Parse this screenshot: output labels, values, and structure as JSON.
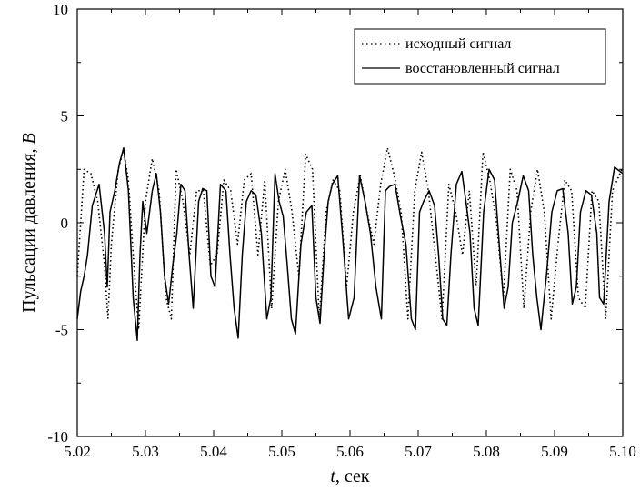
{
  "chart_data": {
    "type": "line",
    "xlabel": "t, сек",
    "xlabel_italic_part": "t",
    "xlabel_rest": ", сек",
    "ylabel": "Пульсации давления, В",
    "ylabel_main": "Пульсации давления, ",
    "ylabel_italic_part": "В",
    "xlim": [
      5.02,
      5.1
    ],
    "ylim": [
      -10,
      10
    ],
    "x_ticks": [
      "5.02",
      "5.03",
      "5.04",
      "5.05",
      "5.06",
      "5.07",
      "5.08",
      "5.09",
      "5.10"
    ],
    "y_ticks": [
      "-10",
      "-5",
      "0",
      "5",
      "10"
    ],
    "legend_position": "top-right",
    "series": [
      {
        "name": "исходный сигнал",
        "style": "dotted",
        "x": [
          5.02,
          5.021,
          5.022,
          5.023,
          5.024,
          5.0245,
          5.025,
          5.026,
          5.0268,
          5.0275,
          5.0282,
          5.029,
          5.03,
          5.031,
          5.032,
          5.033,
          5.0338,
          5.0345,
          5.0355,
          5.0365,
          5.0375,
          5.0385,
          5.0395,
          5.0405,
          5.0415,
          5.0425,
          5.0435,
          5.0445,
          5.0455,
          5.0465,
          5.0475,
          5.0485,
          5.0495,
          5.0505,
          5.0515,
          5.0525,
          5.0535,
          5.0545,
          5.0555,
          5.0565,
          5.0575,
          5.0585,
          5.0595,
          5.0605,
          5.0615,
          5.0625,
          5.0635,
          5.0645,
          5.0655,
          5.0665,
          5.0675,
          5.0685,
          5.0695,
          5.0705,
          5.0715,
          5.0725,
          5.0735,
          5.0745,
          5.0755,
          5.0765,
          5.0775,
          5.0785,
          5.0795,
          5.0805,
          5.0815,
          5.0825,
          5.0835,
          5.0845,
          5.0855,
          5.0865,
          5.0875,
          5.0885,
          5.0895,
          5.0905,
          5.0915,
          5.0925,
          5.0935,
          5.0945,
          5.0955,
          5.0965,
          5.0975,
          5.0985,
          5.1
        ],
        "y": [
          -2.5,
          2.5,
          2.3,
          1.0,
          -2.0,
          -4.5,
          -1.0,
          2.5,
          3.4,
          2.0,
          -1.5,
          -5.0,
          1.0,
          3.0,
          1.5,
          -3.5,
          -4.5,
          2.5,
          1.0,
          -1.5,
          1.5,
          1.5,
          -2.0,
          -1.5,
          2.0,
          1.5,
          -1.0,
          2.0,
          2.3,
          -1.5,
          2.0,
          -4.0,
          1.0,
          2.5,
          0.5,
          -2.5,
          3.2,
          2.5,
          -4.5,
          0.5,
          2.0,
          1.5,
          -3.0,
          0.5,
          2.2,
          0.5,
          -1.0,
          1.8,
          3.5,
          2.2,
          0.5,
          -4.5,
          1.5,
          3.3,
          1.5,
          -1.5,
          -4.5,
          1.8,
          0.5,
          -1.5,
          1.5,
          -3.0,
          3.3,
          2.0,
          0.0,
          -3.5,
          2.5,
          1.5,
          -4.0,
          0.5,
          2.5,
          0.5,
          -4.5,
          -1.0,
          2.0,
          1.5,
          -3.5,
          -4.0,
          1.5,
          1.0,
          -4.5,
          1.5,
          2.6
        ]
      },
      {
        "name": "восстановленный сигнал",
        "style": "solid",
        "x": [
          5.02,
          5.0205,
          5.021,
          5.0215,
          5.0222,
          5.0232,
          5.024,
          5.0244,
          5.0248,
          5.0255,
          5.0262,
          5.0268,
          5.0275,
          5.0282,
          5.0288,
          5.0292,
          5.0296,
          5.0302,
          5.031,
          5.0316,
          5.0322,
          5.0328,
          5.0334,
          5.034,
          5.0346,
          5.0352,
          5.0358,
          5.0364,
          5.037,
          5.0378,
          5.0384,
          5.039,
          5.0396,
          5.0402,
          5.041,
          5.0418,
          5.0424,
          5.043,
          5.0436,
          5.0442,
          5.0448,
          5.0455,
          5.0462,
          5.047,
          5.0478,
          5.0484,
          5.049,
          5.0496,
          5.0502,
          5.0508,
          5.0514,
          5.052,
          5.0528,
          5.0536,
          5.0544,
          5.055,
          5.0556,
          5.0562,
          5.0568,
          5.0574,
          5.0582,
          5.059,
          5.0598,
          5.0606,
          5.0614,
          5.0622,
          5.063,
          5.0638,
          5.0646,
          5.0652,
          5.0658,
          5.0666,
          5.0674,
          5.0682,
          5.069,
          5.0696,
          5.0702,
          5.0708,
          5.0716,
          5.0724,
          5.073,
          5.0736,
          5.0742,
          5.0748,
          5.0756,
          5.0764,
          5.077,
          5.0776,
          5.0782,
          5.0788,
          5.0796,
          5.0804,
          5.0812,
          5.082,
          5.0826,
          5.0832,
          5.0838,
          5.0846,
          5.0854,
          5.0862,
          5.0868,
          5.0874,
          5.088,
          5.0888,
          5.0896,
          5.0904,
          5.0912,
          5.092,
          5.0926,
          5.0932,
          5.0938,
          5.0946,
          5.0954,
          5.0962,
          5.0966,
          5.0972,
          5.098,
          5.0988,
          5.1
        ],
        "y": [
          -4.5,
          -3.2,
          -2.5,
          -1.5,
          0.8,
          1.8,
          -0.5,
          -3.0,
          0.5,
          1.5,
          2.8,
          3.5,
          1.5,
          -3.5,
          -5.5,
          -1.5,
          1.0,
          -0.5,
          1.5,
          2.3,
          0.5,
          -2.5,
          -3.8,
          -2.0,
          -0.5,
          1.8,
          1.5,
          -1.5,
          -4.0,
          1.0,
          1.6,
          1.5,
          -2.5,
          -3.0,
          1.8,
          1.5,
          -1.5,
          -4.0,
          -5.4,
          -1.5,
          1.0,
          1.5,
          1.3,
          -0.5,
          -4.5,
          -3.5,
          2.3,
          1.0,
          0.3,
          -2.0,
          -4.5,
          -5.2,
          -1.0,
          0.5,
          0.8,
          -3.5,
          -4.7,
          -1.5,
          1.0,
          1.8,
          2.2,
          -1.0,
          -4.5,
          -3.5,
          2.2,
          1.0,
          -0.5,
          -3.0,
          -4.5,
          1.5,
          1.7,
          1.8,
          0.3,
          -1.0,
          -4.5,
          -5.0,
          0.5,
          1.0,
          1.5,
          0.8,
          -1.5,
          -4.5,
          -4.8,
          -1.5,
          1.8,
          2.4,
          1.0,
          -0.5,
          -4.0,
          -4.8,
          0.5,
          2.5,
          2.0,
          -1.5,
          -4.0,
          -3.0,
          0.0,
          1.0,
          2.2,
          1.5,
          -1.5,
          -3.5,
          -5.0,
          -2.5,
          0.5,
          1.5,
          1.6,
          -0.5,
          -3.8,
          -3.0,
          0.5,
          1.5,
          1.3,
          -0.5,
          -3.5,
          -3.8,
          1.0,
          2.6,
          2.3
        ]
      }
    ]
  },
  "colors": {
    "line": "#000000",
    "background": "#ffffff"
  }
}
